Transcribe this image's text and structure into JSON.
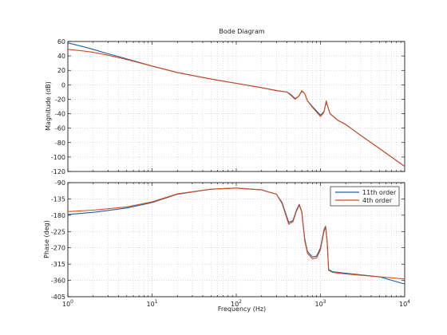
{
  "chart_data": {
    "title": "Bode Diagram",
    "xlabel": "Frequency  (Hz)",
    "xscale": "log",
    "xlim": [
      1,
      10000
    ],
    "x_ticks": [
      1,
      10,
      100,
      1000,
      10000
    ],
    "x_tick_labels": [
      {
        "base": "10",
        "exp": "0"
      },
      {
        "base": "10",
        "exp": "1"
      },
      {
        "base": "10",
        "exp": "2"
      },
      {
        "base": "10",
        "exp": "3"
      },
      {
        "base": "10",
        "exp": "4"
      }
    ],
    "grid": true,
    "legend": {
      "placement": "top-right",
      "entries": [
        "11th order",
        "4th order"
      ]
    },
    "colors": {
      "11th order": "#1f5fa8",
      "4th order": "#d5491a"
    },
    "subplots": [
      {
        "type": "line",
        "ylabel": "Magnitude (dB)",
        "ylim": [
          -120,
          60
        ],
        "yticks": [
          60,
          40,
          20,
          0,
          -20,
          -40,
          -60,
          -80,
          -100,
          -120
        ],
        "series": [
          {
            "name": "11th order",
            "points": [
              [
                1,
                58
              ],
              [
                1.5,
                53
              ],
              [
                2,
                49
              ],
              [
                3,
                43
              ],
              [
                5,
                36
              ],
              [
                10,
                26
              ],
              [
                20,
                17
              ],
              [
                50,
                8
              ],
              [
                100,
                2
              ],
              [
                200,
                -4
              ],
              [
                300,
                -8
              ],
              [
                400,
                -10
              ],
              [
                450,
                -14
              ],
              [
                500,
                -19
              ],
              [
                550,
                -16
              ],
              [
                600,
                -9
              ],
              [
                650,
                -12
              ],
              [
                700,
                -22
              ],
              [
                800,
                -30
              ],
              [
                1000,
                -42
              ],
              [
                1100,
                -37
              ],
              [
                1170,
                -24
              ],
              [
                1220,
                -30
              ],
              [
                1300,
                -40
              ],
              [
                1600,
                -49
              ],
              [
                2000,
                -55
              ],
              [
                3000,
                -70
              ],
              [
                5000,
                -88
              ],
              [
                10000,
                -113
              ]
            ]
          },
          {
            "name": "4th order",
            "points": [
              [
                1,
                49
              ],
              [
                1.5,
                47
              ],
              [
                2,
                45
              ],
              [
                3,
                41
              ],
              [
                5,
                35
              ],
              [
                10,
                26
              ],
              [
                20,
                17
              ],
              [
                50,
                8
              ],
              [
                100,
                2
              ],
              [
                200,
                -4
              ],
              [
                300,
                -8
              ],
              [
                400,
                -10
              ],
              [
                450,
                -15
              ],
              [
                500,
                -20
              ],
              [
                550,
                -16
              ],
              [
                600,
                -8
              ],
              [
                650,
                -12
              ],
              [
                700,
                -22
              ],
              [
                800,
                -31
              ],
              [
                1000,
                -44
              ],
              [
                1100,
                -38
              ],
              [
                1170,
                -22
              ],
              [
                1220,
                -30
              ],
              [
                1300,
                -40
              ],
              [
                1600,
                -49
              ],
              [
                2000,
                -55
              ],
              [
                3000,
                -70
              ],
              [
                5000,
                -88
              ],
              [
                10000,
                -113
              ]
            ]
          }
        ]
      },
      {
        "type": "line",
        "ylabel": "Phase (deg)",
        "ylim": [
          -405,
          -90
        ],
        "yticks": [
          -90,
          -135,
          -180,
          -225,
          -270,
          -315,
          -360,
          -405
        ],
        "series": [
          {
            "name": "11th order",
            "points": [
              [
                1,
                -178
              ],
              [
                2,
                -172
              ],
              [
                5,
                -160
              ],
              [
                10,
                -145
              ],
              [
                20,
                -122
              ],
              [
                50,
                -108
              ],
              [
                100,
                -105
              ],
              [
                200,
                -110
              ],
              [
                300,
                -122
              ],
              [
                350,
                -145
              ],
              [
                420,
                -200
              ],
              [
                470,
                -195
              ],
              [
                520,
                -165
              ],
              [
                560,
                -150
              ],
              [
                600,
                -170
              ],
              [
                650,
                -245
              ],
              [
                700,
                -280
              ],
              [
                800,
                -295
              ],
              [
                900,
                -293
              ],
              [
                1000,
                -270
              ],
              [
                1100,
                -220
              ],
              [
                1150,
                -210
              ],
              [
                1200,
                -250
              ],
              [
                1250,
                -330
              ],
              [
                1400,
                -336
              ],
              [
                2000,
                -340
              ],
              [
                5000,
                -350
              ],
              [
                10000,
                -370
              ]
            ]
          },
          {
            "name": "4th order",
            "points": [
              [
                1,
                -170
              ],
              [
                2,
                -166
              ],
              [
                5,
                -157
              ],
              [
                10,
                -143
              ],
              [
                20,
                -121
              ],
              [
                50,
                -108
              ],
              [
                100,
                -105
              ],
              [
                200,
                -110
              ],
              [
                300,
                -122
              ],
              [
                350,
                -148
              ],
              [
                420,
                -205
              ],
              [
                470,
                -198
              ],
              [
                520,
                -168
              ],
              [
                560,
                -152
              ],
              [
                600,
                -172
              ],
              [
                650,
                -250
              ],
              [
                700,
                -285
              ],
              [
                800,
                -300
              ],
              [
                900,
                -298
              ],
              [
                1000,
                -275
              ],
              [
                1100,
                -225
              ],
              [
                1150,
                -212
              ],
              [
                1200,
                -255
              ],
              [
                1250,
                -332
              ],
              [
                1400,
                -338
              ],
              [
                2000,
                -342
              ],
              [
                5000,
                -350
              ],
              [
                10000,
                -356
              ]
            ]
          }
        ]
      }
    ]
  }
}
